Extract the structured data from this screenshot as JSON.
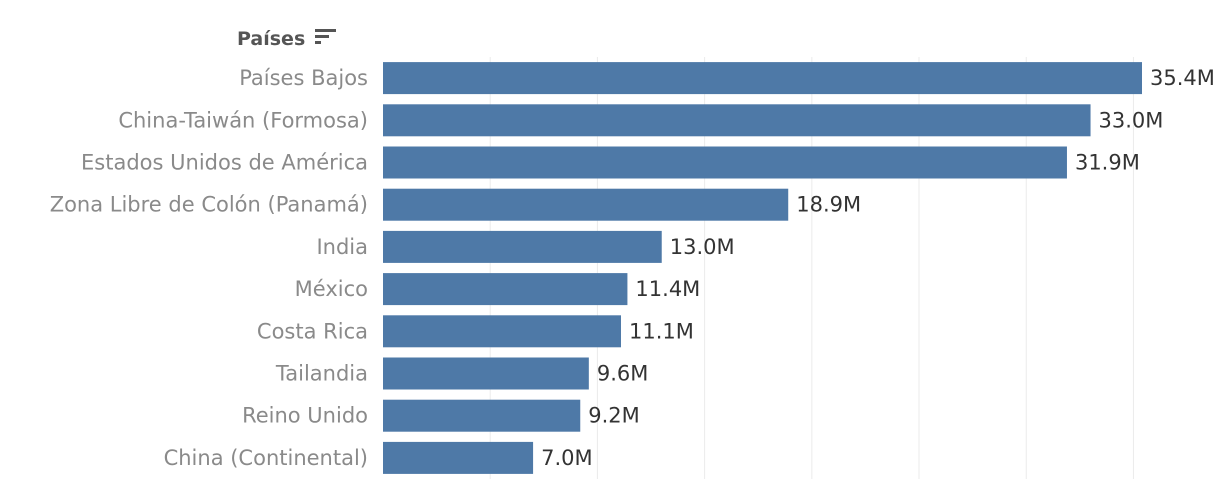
{
  "chart_data": {
    "type": "bar",
    "orientation": "horizontal",
    "header": "Países",
    "sort_icon": "sort-descending-icon",
    "categories": [
      "Países Bajos",
      "China-Taiwán (Formosa)",
      "Estados Unidos de América",
      "Zona Libre de Colón (Panamá)",
      "India",
      "México",
      "Costa Rica",
      "Tailandia",
      "Reino Unido",
      "China (Continental)"
    ],
    "values": [
      35.4,
      33.0,
      31.9,
      18.9,
      13.0,
      11.4,
      11.1,
      9.6,
      9.2,
      7.0
    ],
    "value_labels": [
      "35.4M",
      "33.0M",
      "31.9M",
      "18.9M",
      "13.0M",
      "11.4M",
      "11.1M",
      "9.6M",
      "9.2M",
      "7.0M"
    ],
    "unit": "M",
    "xlim": [
      0,
      35.4
    ],
    "gridlines_x": [
      5,
      10,
      15,
      20,
      25,
      30,
      35
    ],
    "grid": true,
    "bar_color": "#4e79a7",
    "gridline_color": "#ebebeb"
  }
}
